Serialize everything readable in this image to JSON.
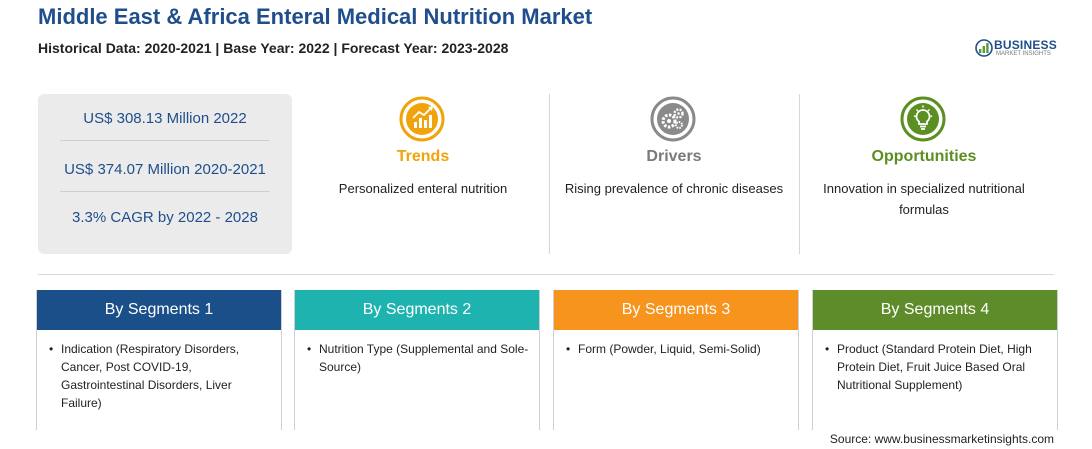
{
  "header": {
    "title": "Middle East & Africa Enteral Medical Nutrition Market",
    "subtitle": "Historical Data: 2020-2021 | Base Year: 2022 | Forecast Year: 2023-2028"
  },
  "logo": {
    "name": "BUSINESS",
    "tagline": "MARKET INSIGHTS",
    "color": "#1f4e8c",
    "accent": "#5a9a3a"
  },
  "stats": [
    "US$ 308.13 Million 2022",
    "US$ 374.07 Million 2020-2021",
    "3.3% CAGR by 2022 - 2028"
  ],
  "features": [
    {
      "heading": "Trends",
      "text": "Personalized enteral nutrition",
      "icon": "trend-chart-icon",
      "color": "#f0a30a"
    },
    {
      "heading": "Drivers",
      "text": "Rising prevalence of chronic diseases",
      "icon": "gears-icon",
      "color": "#8a8a8a"
    },
    {
      "heading": "Opportunities",
      "text": "Innovation in specialized nutritional formulas",
      "icon": "lightbulb-icon",
      "color": "#5b8f22"
    }
  ],
  "segments": [
    {
      "title": "By Segments 1",
      "color": "#1b4f8a",
      "text": "Indication (Respiratory Disorders, Cancer, Post COVID-19, Gastrointestinal Disorders, Liver Failure)"
    },
    {
      "title": "By Segments 2",
      "color": "#1fb3b0",
      "text": "Nutrition Type (Supplemental and Sole-Source)"
    },
    {
      "title": "By Segments 3",
      "color": "#f7941d",
      "text": "Form (Powder, Liquid, Semi-Solid)"
    },
    {
      "title": "By Segments 4",
      "color": "#5e8c2a",
      "text": "Product (Standard Protein Diet, High Protein Diet, Fruit Juice Based Oral Nutritional Supplement)"
    }
  ],
  "bullet": "•",
  "source": "Source: www.businessmarketinsights.com"
}
